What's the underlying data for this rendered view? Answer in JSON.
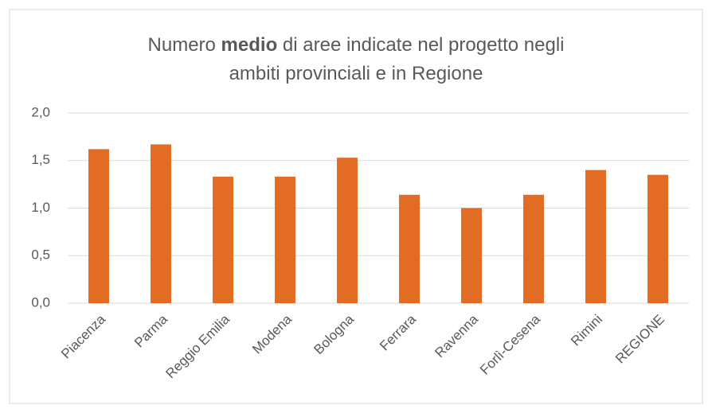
{
  "chart_data": {
    "type": "bar",
    "title_lines": [
      [
        {
          "text": "Numero "
        },
        {
          "text": "medio",
          "bold": true
        },
        {
          "text": " di aree indicate nel progetto negli"
        }
      ],
      [
        {
          "text": "ambiti provinciali e in Regione"
        }
      ]
    ],
    "categories": [
      "Piacenza",
      "Parma",
      "Reggio Emilia",
      "Modena",
      "Bologna",
      "Ferrara",
      "Ravenna",
      "Forlì-Cesena",
      "Rimini",
      "REGIONE"
    ],
    "values": [
      1.62,
      1.67,
      1.33,
      1.33,
      1.53,
      1.14,
      1.0,
      1.14,
      1.4,
      1.35
    ],
    "color": "#e36c24",
    "ylim": [
      0,
      2
    ],
    "yticks": [
      {
        "value": 0,
        "label": "0,0"
      },
      {
        "value": 0.5,
        "label": "0,5"
      },
      {
        "value": 1,
        "label": "1,0"
      },
      {
        "value": 1.5,
        "label": "1,5"
      },
      {
        "value": 2,
        "label": "2,0"
      }
    ],
    "grid": true
  }
}
